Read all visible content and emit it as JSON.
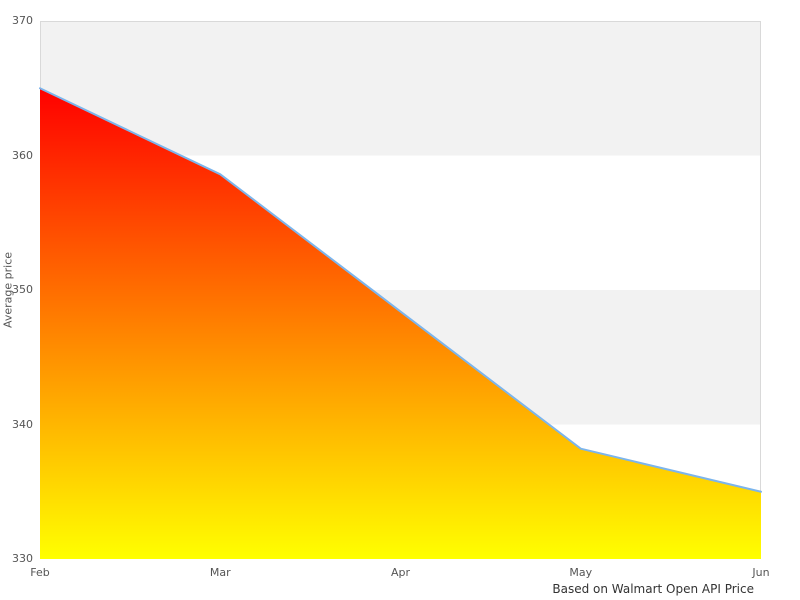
{
  "chart_data": {
    "type": "area",
    "categories": [
      "Feb",
      "Mar",
      "Apr",
      "May",
      "Jun"
    ],
    "values": [
      365,
      358.6,
      348.4,
      338.2,
      335
    ],
    "ylabel": "Average price",
    "ylim": [
      330,
      370
    ],
    "yticks": [
      330,
      340,
      350,
      360,
      370
    ],
    "caption": "Based on Walmart Open API Price",
    "legend": "none",
    "grid": "alternating-horizontal-bands",
    "colors": {
      "line": "#7cb5ec",
      "area_gradient_top": "#ff0000",
      "area_gradient_bottom": "#ffff00",
      "band_fill": "#f2f2f2",
      "plot_border": "#d9d9d9",
      "tick_label": "#555555",
      "caption_text": "#333333",
      "background": "#ffffff"
    }
  }
}
